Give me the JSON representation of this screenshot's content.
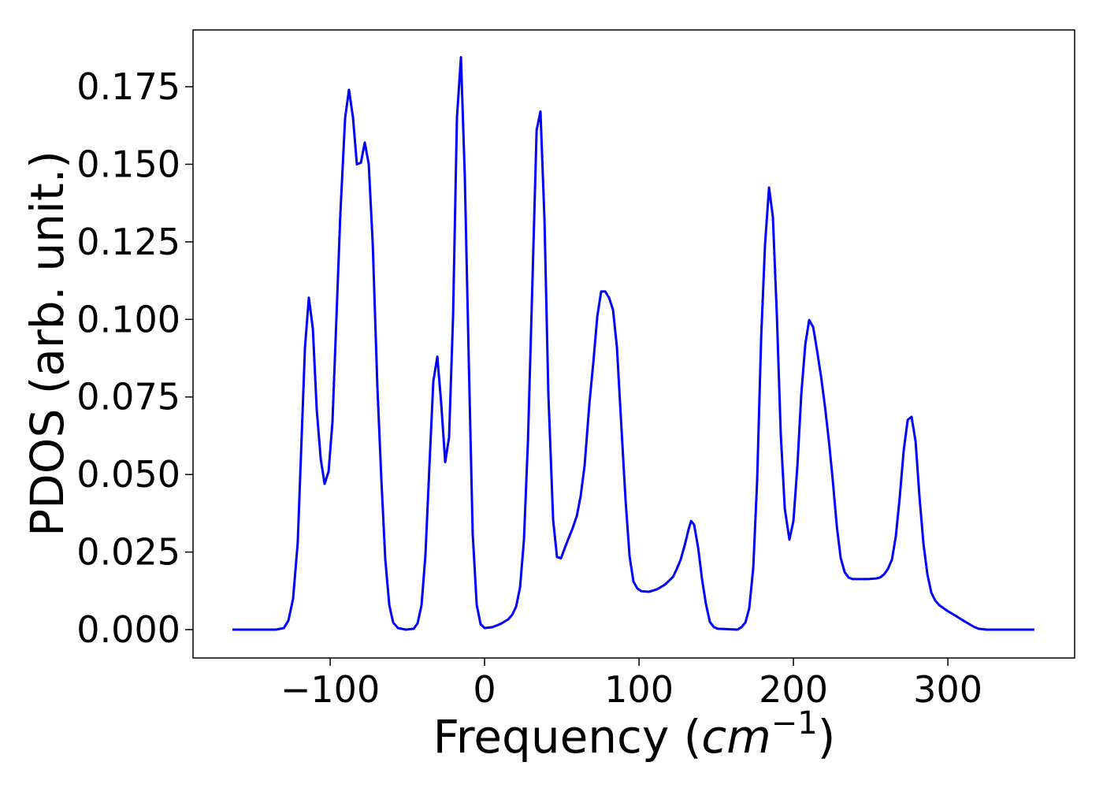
{
  "chart_data": {
    "type": "line",
    "xlabel": [
      "Frequency (",
      "cm",
      "−1",
      ")"
    ],
    "ylabel": "PDOS (arb. unit.)",
    "color": "#0000ff",
    "x": [
      -163.3,
      -135,
      -130,
      -127,
      -124,
      -121,
      -116.3,
      -113.8,
      -111.2,
      -108.7,
      -106.1,
      -103.6,
      -101,
      -98.5,
      -95.9,
      -93.4,
      -90.3,
      -87.8,
      -85.2,
      -82.7,
      -80.1,
      -77.6,
      -75,
      -72.4,
      -69.4,
      -66.8,
      -64.3,
      -61.7,
      -59.2,
      -56.1,
      -51,
      -45.9,
      -43.4,
      -40.8,
      -38.3,
      -35.7,
      -33.2,
      -30.6,
      -28.1,
      -25.5,
      -23,
      -20.4,
      -17.9,
      -15.3,
      -12.8,
      -10.2,
      -7.7,
      -5.1,
      -2.6,
      0,
      5.1,
      10.2,
      15.3,
      17.9,
      20.4,
      23,
      25.5,
      28.1,
      31.1,
      33.7,
      36.2,
      38.8,
      41.3,
      44.4,
      46.9,
      49.5,
      52,
      54.6,
      57.1,
      59.7,
      62.2,
      64.8,
      67.9,
      70.4,
      73,
      75.5,
      78.1,
      80.6,
      83.2,
      85.7,
      88.3,
      91.3,
      93.9,
      96.4,
      99,
      101.5,
      106.6,
      111.7,
      116.8,
      122,
      124.5,
      127,
      129.6,
      132.1,
      133.7,
      135.7,
      138.3,
      140.8,
      143.4,
      145.9,
      148.5,
      151,
      163.8,
      166.3,
      168.9,
      171.4,
      174,
      176.5,
      179.1,
      181.6,
      184.2,
      186.7,
      189.3,
      191.8,
      194.4,
      197.4,
      200,
      202.6,
      205.1,
      207.7,
      210.2,
      212.8,
      215.3,
      217.9,
      220.4,
      223,
      225.5,
      228.1,
      230.6,
      233.2,
      235.7,
      238.3,
      248.5,
      253.6,
      256.1,
      258.7,
      261.2,
      263.8,
      266.3,
      268.9,
      271.4,
      274,
      276.5,
      279.1,
      281.6,
      284.2,
      286.7,
      289.3,
      291.8,
      294.4,
      299.5,
      304.6,
      309.7,
      314.8,
      317.3,
      319.9,
      325,
      356
    ],
    "values": [
      0,
      0,
      0.0005,
      0.003,
      0.01,
      0.028,
      0.091,
      0.107,
      0.097,
      0.071,
      0.055,
      0.047,
      0.051,
      0.067,
      0.101,
      0.134,
      0.165,
      0.174,
      0.165,
      0.15,
      0.1505,
      0.157,
      0.15,
      0.124,
      0.078,
      0.048,
      0.0226,
      0.0079,
      0.0023,
      0.0005,
      0,
      0.0003,
      0.002,
      0.008,
      0.024,
      0.053,
      0.08,
      0.088,
      0.073,
      0.054,
      0.062,
      0.101,
      0.165,
      0.1845,
      0.146,
      0.086,
      0.031,
      0.008,
      0.0018,
      0.0005,
      0.0008,
      0.0018,
      0.0033,
      0.0048,
      0.0074,
      0.0137,
      0.029,
      0.061,
      0.114,
      0.161,
      0.167,
      0.132,
      0.076,
      0.0353,
      0.0234,
      0.023,
      0.0264,
      0.0297,
      0.0328,
      0.0366,
      0.043,
      0.053,
      0.073,
      0.086,
      0.101,
      0.109,
      0.109,
      0.107,
      0.103,
      0.091,
      0.068,
      0.0417,
      0.0236,
      0.0155,
      0.0132,
      0.0124,
      0.0122,
      0.013,
      0.0145,
      0.017,
      0.0196,
      0.0226,
      0.0272,
      0.0323,
      0.035,
      0.0338,
      0.0264,
      0.0163,
      0.0081,
      0.0025,
      0.0008,
      0.0003,
      0,
      0.0008,
      0.0023,
      0.0069,
      0.02,
      0.048,
      0.094,
      0.124,
      0.1425,
      0.133,
      0.101,
      0.063,
      0.039,
      0.029,
      0.035,
      0.053,
      0.076,
      0.092,
      0.0998,
      0.0975,
      0.09,
      0.0815,
      0.072,
      0.0607,
      0.048,
      0.0333,
      0.0231,
      0.0185,
      0.0168,
      0.0163,
      0.0163,
      0.0165,
      0.0168,
      0.0178,
      0.0196,
      0.0226,
      0.03,
      0.043,
      0.0577,
      0.0676,
      0.0686,
      0.0607,
      0.043,
      0.0277,
      0.018,
      0.0119,
      0.0094,
      0.0079,
      0.0061,
      0.0046,
      0.003,
      0.0015,
      0.0008,
      0.0003,
      0,
      0
    ],
    "xlim": [
      -188.8,
      382.1
    ],
    "ylim": [
      -0.00914,
      0.1933
    ],
    "xticks": [
      {
        "value": -100,
        "label": "−100"
      },
      0,
      100,
      200,
      300
    ],
    "yticks": [
      {
        "value": 0,
        "label": "0.000"
      },
      {
        "value": 0.025,
        "label": "0.025"
      },
      {
        "value": 0.05,
        "label": "0.050"
      },
      {
        "value": 0.075,
        "label": "0.075"
      },
      {
        "value": 0.1,
        "label": "0.100"
      },
      {
        "value": 0.125,
        "label": "0.125"
      },
      {
        "value": 0.15,
        "label": "0.150"
      },
      {
        "value": 0.175,
        "label": "0.175"
      }
    ],
    "grid": false
  }
}
